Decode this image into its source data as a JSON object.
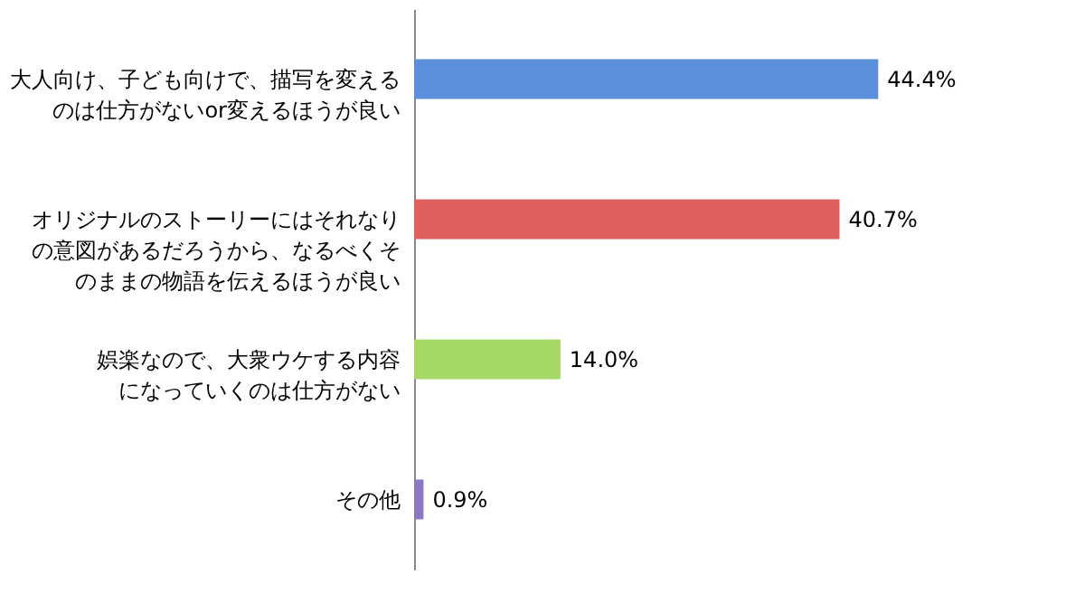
{
  "chart_data": {
    "type": "bar",
    "orientation": "horizontal",
    "categories": [
      "大人向け、子ども向けで、描写を変えるのは仕方がないor変えるほうが良い",
      "オリジナルのストーリーにはそれなりの意図があるだろうから、なるべくそのままの物語を伝えるほうが良い",
      "娯楽なので、大衆ウケする内容になっていくのは仕方がない",
      "その他"
    ],
    "values": [
      44.4,
      40.7,
      14.0,
      0.9
    ],
    "value_labels": [
      "44.4%",
      "40.7%",
      "14.0%",
      "0.9%"
    ],
    "colors": [
      "#5b8fdc",
      "#e0605e",
      "#a5d867",
      "#8c78c0"
    ],
    "grid": false
  }
}
